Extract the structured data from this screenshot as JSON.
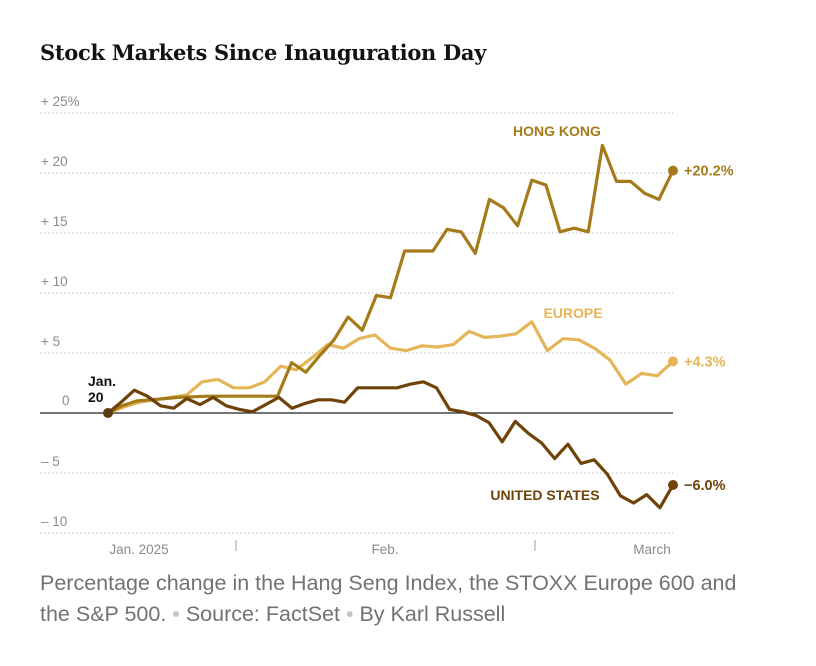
{
  "chart_data": {
    "type": "line",
    "title": "Stock Markets Since Inauguration Day",
    "y_ticks": [
      {
        "value": 25,
        "label": "+ 25%"
      },
      {
        "value": 20,
        "label": "+ 20"
      },
      {
        "value": 15,
        "label": "+ 15"
      },
      {
        "value": 10,
        "label": "+ 10"
      },
      {
        "value": 5,
        "label": "+  5"
      },
      {
        "value": 0,
        "label": "0"
      },
      {
        "value": -5,
        "label": "–  5"
      },
      {
        "value": -10,
        "label": "– 10"
      }
    ],
    "x_ticks": [
      "Jan. 2025",
      "Feb.",
      "March"
    ],
    "ylim": [
      -10,
      25
    ],
    "start_annotation": [
      "Jan.",
      "20"
    ],
    "series": [
      {
        "name": "HONG KONG",
        "color": "#a57b1a",
        "end_label": "+20.2%",
        "values": [
          0,
          0.6,
          1,
          1.1,
          1.2,
          1.3,
          1.35,
          1.4,
          1.4,
          1.4,
          1.4,
          1.4,
          1.4,
          4.2,
          3.4,
          4.8,
          6.1,
          8,
          6.9,
          9.8,
          9.6,
          13.5,
          13.5,
          13.5,
          15.3,
          15.1,
          13.3,
          17.8,
          17.1,
          15.6,
          19.4,
          19,
          15.1,
          15.4,
          15.1,
          22.3,
          19.3,
          19.3,
          18.3,
          17.8,
          20.2
        ]
      },
      {
        "name": "EUROPE",
        "color": "#e5b55a",
        "end_label": "+4.3%",
        "values": [
          0,
          0.5,
          0.9,
          1.1,
          1.3,
          1.5,
          2.6,
          2.8,
          2.1,
          2.1,
          2.6,
          3.9,
          3.6,
          4.6,
          5.7,
          5.4,
          6.2,
          6.5,
          5.4,
          5.2,
          5.6,
          5.5,
          5.7,
          6.8,
          6.3,
          6.4,
          6.6,
          7.6,
          5.2,
          6.2,
          6.1,
          5.4,
          4.4,
          2.4,
          3.3,
          3.1,
          4.3
        ]
      },
      {
        "name": "UNITED STATES",
        "color": "#6e4208",
        "end_label": "−6.0%",
        "values": [
          0,
          0.9,
          1.9,
          1.4,
          0.6,
          0.4,
          1.2,
          0.7,
          1.3,
          0.6,
          0.3,
          0.1,
          0.7,
          1.3,
          0.4,
          0.8,
          1.1,
          1.1,
          0.9,
          2.1,
          2.1,
          2.1,
          2.1,
          2.4,
          2.6,
          2.1,
          0.3,
          0.1,
          -0.2,
          -0.8,
          -2.4,
          -0.7,
          -1.7,
          -2.5,
          -3.8,
          -2.6,
          -4.2,
          -3.9,
          -5.1,
          -6.9,
          -7.5,
          -6.8,
          -7.9,
          -6
        ]
      }
    ]
  },
  "caption": {
    "text": "Percentage change in the Hang Seng Index, the STOXX Europe 600 and the S&P 500.",
    "sep1": "•",
    "source": "Source: FactSet",
    "sep2": "•",
    "byline": "By Karl Russell"
  }
}
